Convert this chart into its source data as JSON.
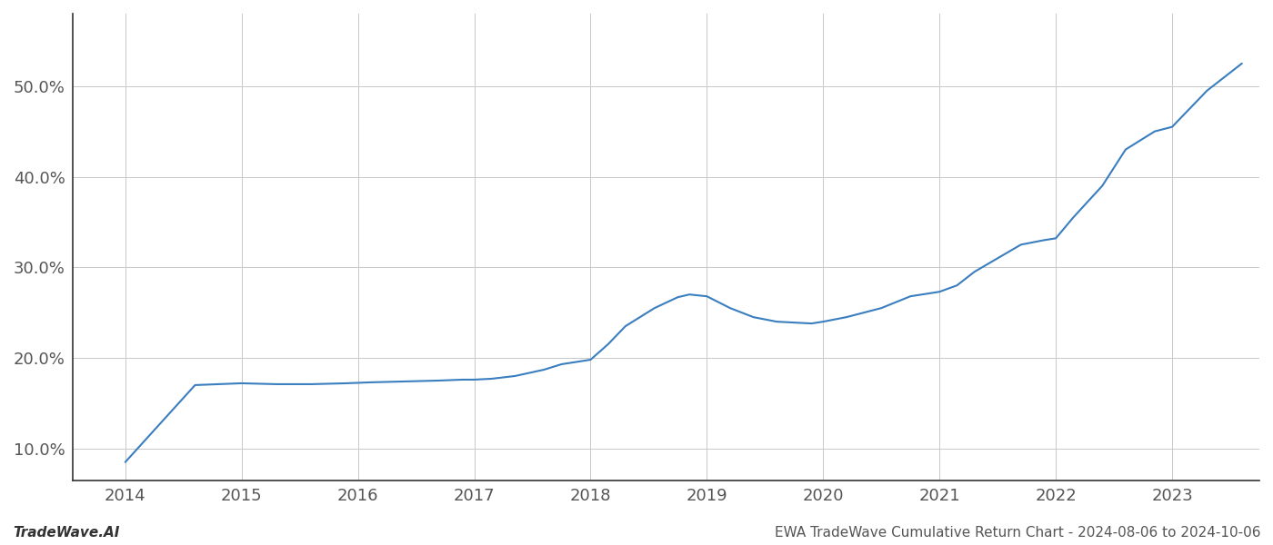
{
  "title": "",
  "footer_left": "TradeWave.AI",
  "footer_right": "EWA TradeWave Cumulative Return Chart - 2024-08-06 to 2024-10-06",
  "line_color": "#3a7ebf",
  "background_color": "#ffffff",
  "grid_color": "#c8c8c8",
  "x_years": [
    2014,
    2015,
    2016,
    2017,
    2018,
    2019,
    2020,
    2021,
    2022,
    2023
  ],
  "x_values": [
    2014.0,
    2014.6,
    2015.0,
    2015.15,
    2015.3,
    2015.6,
    2015.9,
    2016.1,
    2016.4,
    2016.7,
    2016.9,
    2017.0,
    2017.15,
    2017.35,
    2017.6,
    2017.75,
    2018.0,
    2018.15,
    2018.3,
    2018.55,
    2018.75,
    2018.85,
    2019.0,
    2019.2,
    2019.4,
    2019.6,
    2019.75,
    2019.9,
    2020.0,
    2020.2,
    2020.5,
    2020.75,
    2021.0,
    2021.15,
    2021.3,
    2021.5,
    2021.7,
    2021.9,
    2022.0,
    2022.15,
    2022.4,
    2022.6,
    2022.85,
    2023.0,
    2023.3,
    2023.6
  ],
  "y_values": [
    8.5,
    17.0,
    17.2,
    17.15,
    17.1,
    17.1,
    17.2,
    17.3,
    17.4,
    17.5,
    17.6,
    17.6,
    17.7,
    18.0,
    18.7,
    19.3,
    19.8,
    21.5,
    23.5,
    25.5,
    26.7,
    27.0,
    26.8,
    25.5,
    24.5,
    24.0,
    23.9,
    23.8,
    24.0,
    24.5,
    25.5,
    26.8,
    27.3,
    28.0,
    29.5,
    31.0,
    32.5,
    33.0,
    33.2,
    35.5,
    39.0,
    43.0,
    45.0,
    45.5,
    49.5,
    52.5
  ],
  "ylim": [
    6.5,
    58.0
  ],
  "xlim": [
    2013.55,
    2023.75
  ],
  "yticks": [
    10.0,
    20.0,
    30.0,
    40.0,
    50.0
  ],
  "ytick_labels": [
    "10.0%",
    "20.0%",
    "30.0%",
    "40.0%",
    "50.0%"
  ],
  "line_width": 1.5,
  "footer_fontsize": 11,
  "tick_fontsize": 13,
  "axis_color": "#444444",
  "tick_color": "#555555",
  "spine_color": "#333333"
}
